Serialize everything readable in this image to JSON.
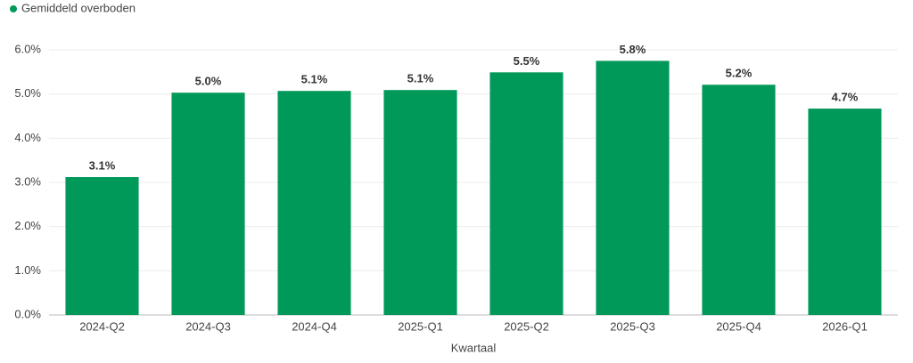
{
  "chart_data": {
    "type": "bar",
    "legend": "Gemiddeld overboden",
    "x_label": "Kwartaal",
    "categories": [
      "2024-Q2",
      "2024-Q3",
      "2024-Q4",
      "2025-Q1",
      "2025-Q2",
      "2025-Q3",
      "2025-Q4",
      "2026-Q1"
    ],
    "values": [
      3.12,
      5.03,
      5.07,
      5.09,
      5.49,
      5.75,
      5.21,
      4.67
    ],
    "value_labels": [
      "3.1%",
      "5.0%",
      "5.1%",
      "5.1%",
      "5.5%",
      "5.8%",
      "5.2%",
      "4.7%"
    ],
    "color": "#00995a",
    "ylim": [
      0,
      6
    ],
    "yticks": [
      {
        "value": 0,
        "label": "0.0%"
      },
      {
        "value": 1,
        "label": "1.0%"
      },
      {
        "value": 2,
        "label": "2.0%"
      },
      {
        "value": 3,
        "label": "3.0%"
      },
      {
        "value": 4,
        "label": "4.0%"
      },
      {
        "value": 5,
        "label": "5.0%"
      },
      {
        "value": 6,
        "label": "6.0%"
      }
    ],
    "grid": true
  }
}
